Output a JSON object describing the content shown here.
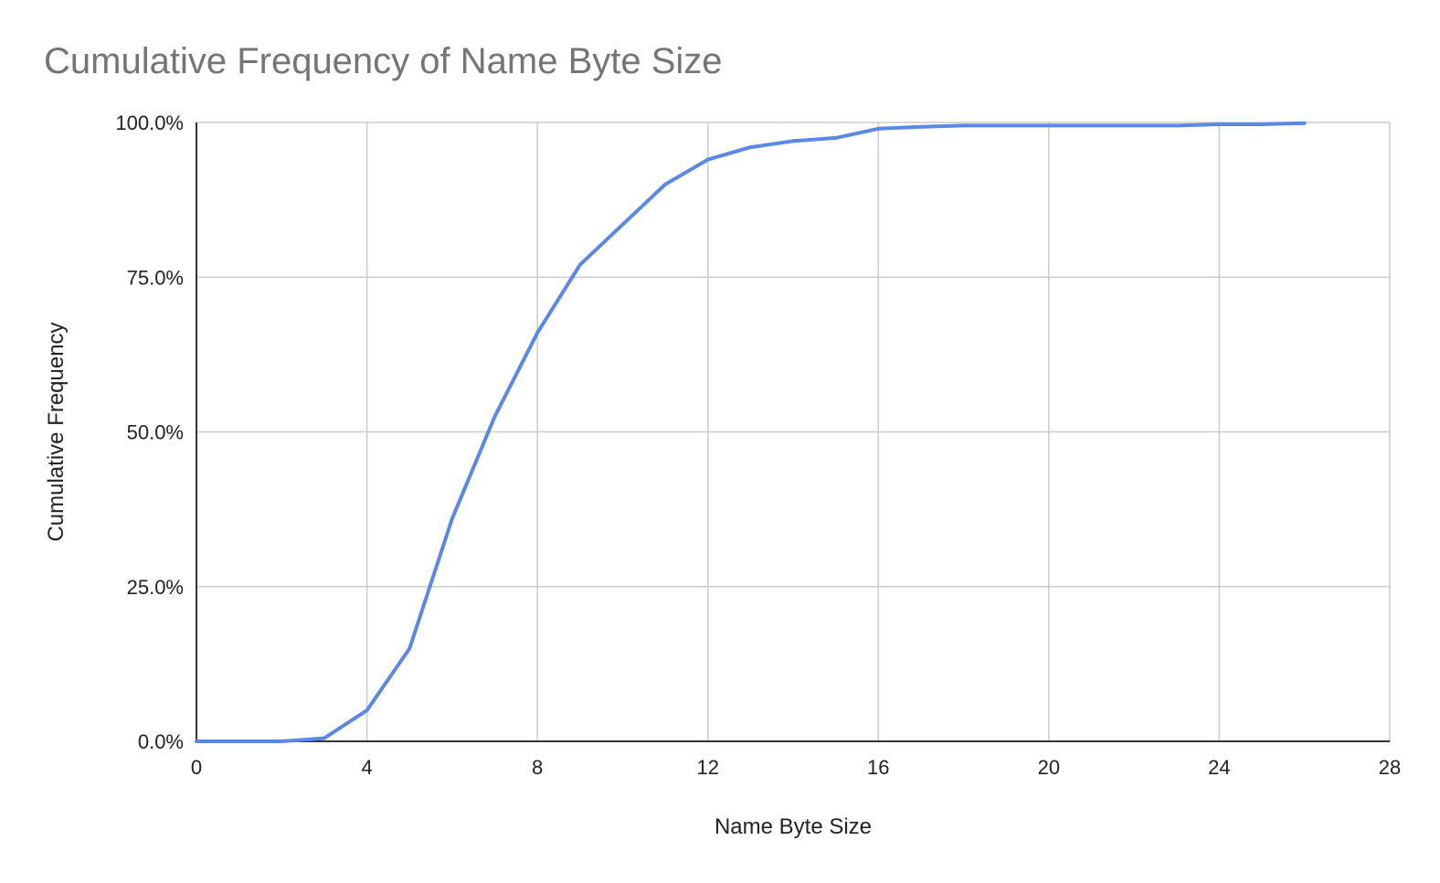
{
  "chart_data": {
    "type": "line",
    "title": "Cumulative Frequency of Name Byte Size",
    "xlabel": "Name Byte Size",
    "ylabel": "Cumulative Frequency",
    "xlim": [
      0,
      28
    ],
    "ylim": [
      0,
      1
    ],
    "x_ticks": [
      "0",
      "4",
      "8",
      "12",
      "16",
      "20",
      "24",
      "28"
    ],
    "y_ticks": [
      "0.0%",
      "25.0%",
      "50.0%",
      "75.0%",
      "100.0%"
    ],
    "grid": true,
    "legend": "none",
    "line_color": "#5b88e5",
    "series": [
      {
        "x": [
          0,
          1,
          2,
          3,
          4,
          5,
          6,
          7,
          8,
          9,
          10,
          11,
          12,
          13,
          14,
          15,
          16,
          17,
          18,
          19,
          20,
          21,
          22,
          23,
          24,
          25,
          26
        ],
        "values": [
          0,
          0,
          0,
          0.005,
          0.05,
          0.15,
          0.36,
          0.525,
          0.66,
          0.77,
          0.835,
          0.9,
          0.94,
          0.96,
          0.97,
          0.975,
          0.99,
          0.993,
          0.995,
          0.995,
          0.995,
          0.995,
          0.995,
          0.995,
          0.997,
          0.997,
          0.999
        ]
      }
    ]
  }
}
